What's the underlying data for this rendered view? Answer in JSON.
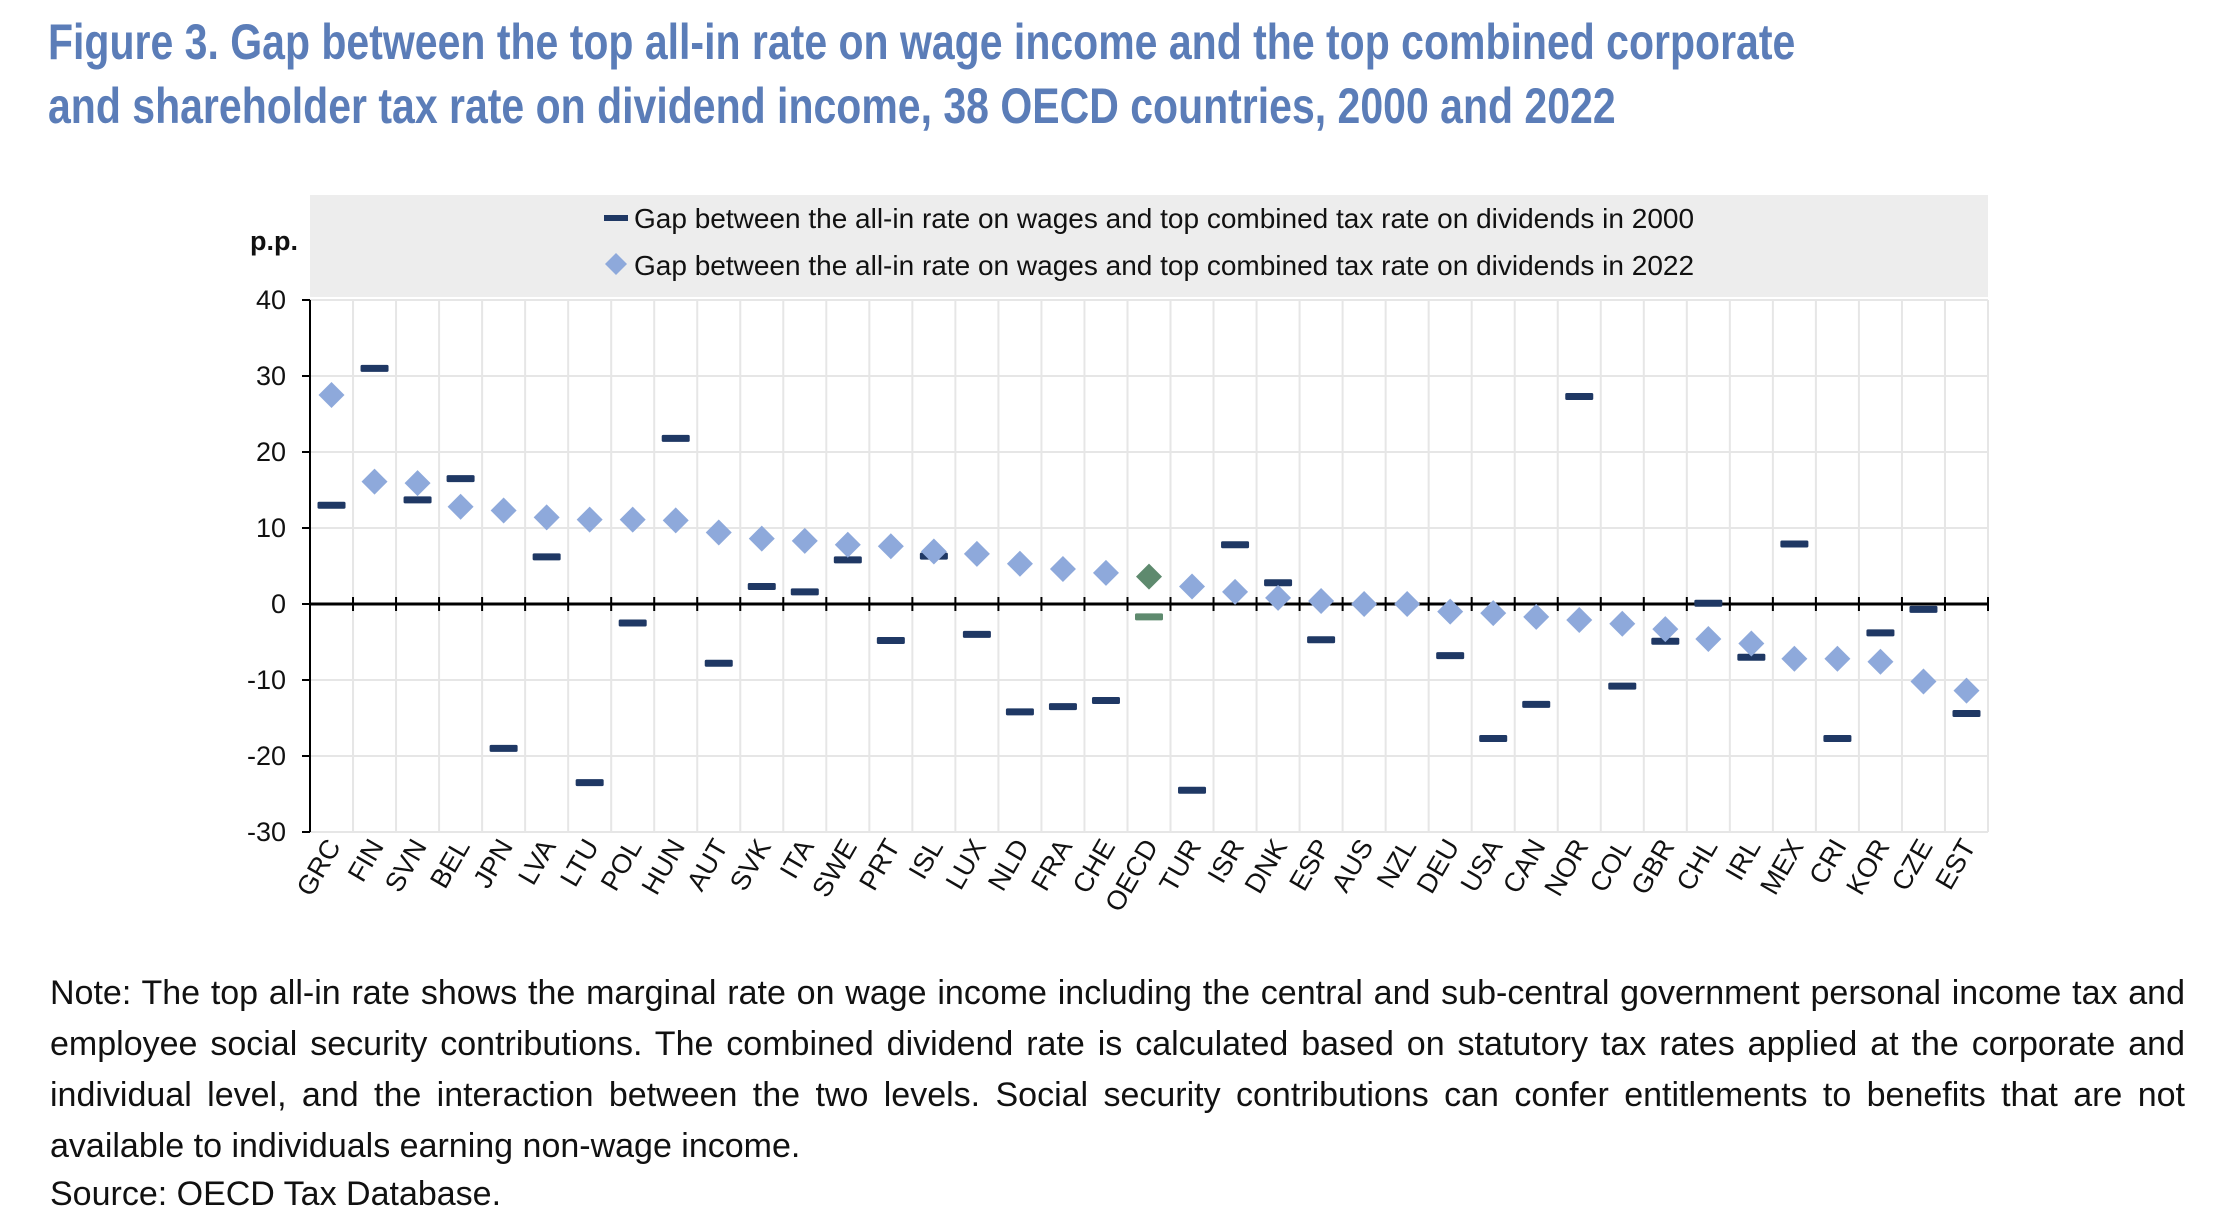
{
  "title": "Figure 3. Gap between the top all-in rate on wage income and the top combined corporate and shareholder tax rate on dividend income, 38 OECD countries, 2000 and 2022",
  "note": "Note: The top all-in rate shows the marginal rate on wage income including the central and sub-central government personal income tax and employee social security contributions. The combined dividend rate is calculated based on statutory tax rates applied at the corporate and individual level, and the interaction between the two levels. Social security contributions can confer entitlements to benefits that are not available to individuals earning non-wage income.",
  "source": "Source: OECD Tax Database.",
  "colors": {
    "series_2000": "#1F3864",
    "series_2022": "#8EA9DB",
    "oecd_highlight": "#5E8A6E",
    "legend_bg": "#EDEDED",
    "plot_bg": "#FFFFFF",
    "grid": "#E6E6E6"
  },
  "chart_data": {
    "type": "scatter",
    "ylabel": "p.p.",
    "ylim": [
      -30,
      40
    ],
    "yticks": [
      -30,
      -20,
      -10,
      0,
      10,
      20,
      30,
      40
    ],
    "grid": true,
    "legend_position": "top",
    "categories": [
      "GRC",
      "FIN",
      "SVN",
      "BEL",
      "JPN",
      "LVA",
      "LTU",
      "POL",
      "HUN",
      "AUT",
      "SVK",
      "ITA",
      "SWE",
      "PRT",
      "ISL",
      "LUX",
      "NLD",
      "FRA",
      "CHE",
      "OECD",
      "TUR",
      "ISR",
      "DNK",
      "ESP",
      "AUS",
      "NZL",
      "DEU",
      "USA",
      "CAN",
      "NOR",
      "COL",
      "GBR",
      "CHL",
      "IRL",
      "MEX",
      "CRI",
      "KOR",
      "CZE",
      "EST"
    ],
    "highlight_category": "OECD",
    "series": [
      {
        "name": "Gap between the all-in rate on wages and top combined tax rate on dividends in 2000",
        "marker": "dash",
        "values": [
          13,
          31,
          13.7,
          16.5,
          -19,
          6.2,
          -23.5,
          -2.5,
          21.8,
          -7.8,
          2.3,
          1.6,
          5.8,
          -4.8,
          6.3,
          -4,
          -14.2,
          -13.5,
          -12.7,
          -1.7,
          -24.5,
          7.8,
          2.8,
          -4.7,
          null,
          null,
          -6.8,
          -17.7,
          -13.2,
          27.3,
          -10.8,
          -4.9,
          0.1,
          -7,
          7.9,
          -17.7,
          -3.8,
          -0.7,
          -14.4
        ]
      },
      {
        "name": "Gap between the all-in rate on wages and top combined tax rate on dividends in 2022",
        "marker": "diamond",
        "values": [
          27.5,
          16.1,
          15.9,
          12.8,
          12.3,
          11.4,
          11.1,
          11.1,
          11,
          9.4,
          8.6,
          8.3,
          7.8,
          7.6,
          6.9,
          6.6,
          5.3,
          4.6,
          4.1,
          3.6,
          2.3,
          1.6,
          0.8,
          0.4,
          0,
          0,
          -1,
          -1.2,
          -1.7,
          -2.1,
          -2.6,
          -3.3,
          -4.6,
          -5.2,
          -7.2,
          -7.2,
          -7.6,
          -10.2,
          -11.4
        ]
      }
    ]
  }
}
